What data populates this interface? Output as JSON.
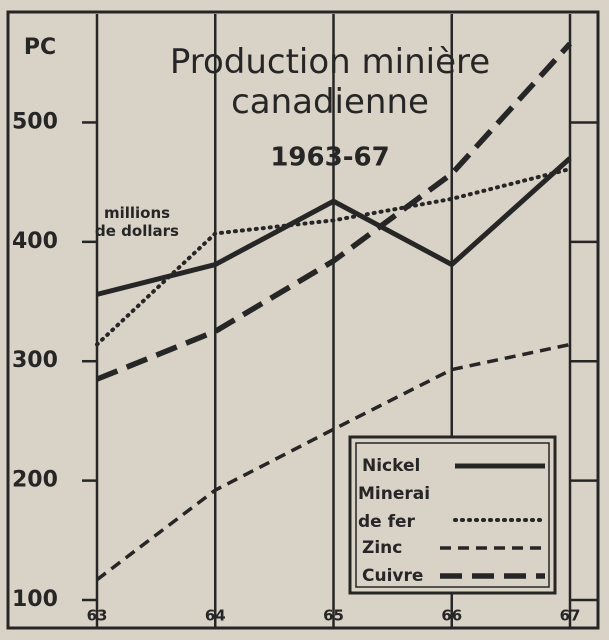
{
  "chart_data": {
    "type": "line",
    "logo": "PC",
    "title": "Production minière canadienne",
    "subtitle": "1963-67",
    "y_label": "millions de dollars",
    "categories": [
      "63",
      "64",
      "65",
      "66",
      "67"
    ],
    "series": [
      {
        "name": "Nickel",
        "color": "#262626",
        "line_style": "solid",
        "values": [
          356,
          381,
          434,
          381,
          470
        ]
      },
      {
        "name": "Minerai de fer",
        "color": "#262626",
        "line_style": "dotted",
        "values": [
          314,
          407,
          418,
          436,
          461
        ]
      },
      {
        "name": "Zinc",
        "color": "#262626",
        "line_style": "dashed",
        "values": [
          117,
          192,
          243,
          293,
          314
        ]
      },
      {
        "name": "Cuivre",
        "color": "#262626",
        "line_style": "longdash",
        "values": [
          285,
          325,
          384,
          457,
          566
        ]
      }
    ],
    "ylim": [
      100,
      590
    ],
    "yticks": [
      100,
      200,
      300,
      400,
      500
    ],
    "grid": true,
    "legend": "lower right"
  }
}
